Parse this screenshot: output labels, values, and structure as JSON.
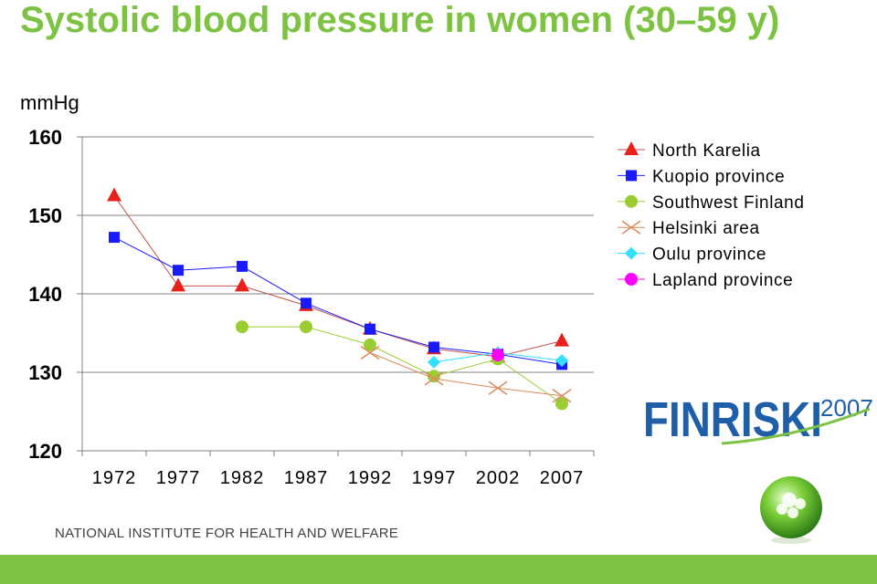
{
  "slide": {
    "title": "Systolic blood pressure in women (30–59 y)",
    "footer": "NATIONAL INSTITUTE FOR HEALTH AND WELFARE",
    "logo_text": "FINRISKI",
    "logo_year": "2007"
  },
  "colors": {
    "title": "#7dc242",
    "footer_bar": "#7dc242",
    "logo": "#1f5fa8"
  },
  "chart_data": {
    "type": "line",
    "title": "",
    "ylabel": "mmHg",
    "xlabel": "",
    "ylim": [
      120,
      160
    ],
    "yticks": [
      120,
      130,
      140,
      150,
      160
    ],
    "categories": [
      "1972",
      "1977",
      "1982",
      "1987",
      "1992",
      "1997",
      "2002",
      "2007"
    ],
    "grid": true,
    "legend_position": "top-right",
    "series": [
      {
        "name": "North Karelia",
        "marker": "triangle",
        "color": "#e8211c",
        "line_color": "#c0504d",
        "values": [
          152.5,
          141.0,
          141.0,
          138.5,
          135.5,
          133.0,
          132.0,
          134.0
        ]
      },
      {
        "name": "Kuopio province",
        "marker": "square",
        "color": "#1a1aff",
        "line_color": "#1a1aff",
        "values": [
          147.2,
          143.0,
          143.5,
          138.8,
          135.5,
          133.2,
          132.3,
          131.0
        ]
      },
      {
        "name": "Southwest Finland",
        "marker": "circle",
        "color": "#9acd32",
        "line_color": "#9acd32",
        "values": [
          null,
          null,
          135.8,
          135.8,
          133.5,
          129.5,
          131.7,
          126.0
        ]
      },
      {
        "name": "Helsinki area",
        "marker": "x",
        "color": "#d98c5f",
        "line_color": "#d98c5f",
        "values": [
          null,
          null,
          null,
          null,
          132.5,
          129.2,
          128.0,
          127.0
        ]
      },
      {
        "name": "Oulu province",
        "marker": "diamond",
        "color": "#33e0ff",
        "line_color": "#33e0ff",
        "values": [
          null,
          null,
          null,
          null,
          null,
          131.3,
          132.5,
          131.5
        ]
      },
      {
        "name": "Lapland province",
        "marker": "circle",
        "color": "#ff00ff",
        "line_color": "#ff00ff",
        "values": [
          null,
          null,
          null,
          null,
          null,
          null,
          132.2,
          null
        ]
      }
    ]
  }
}
